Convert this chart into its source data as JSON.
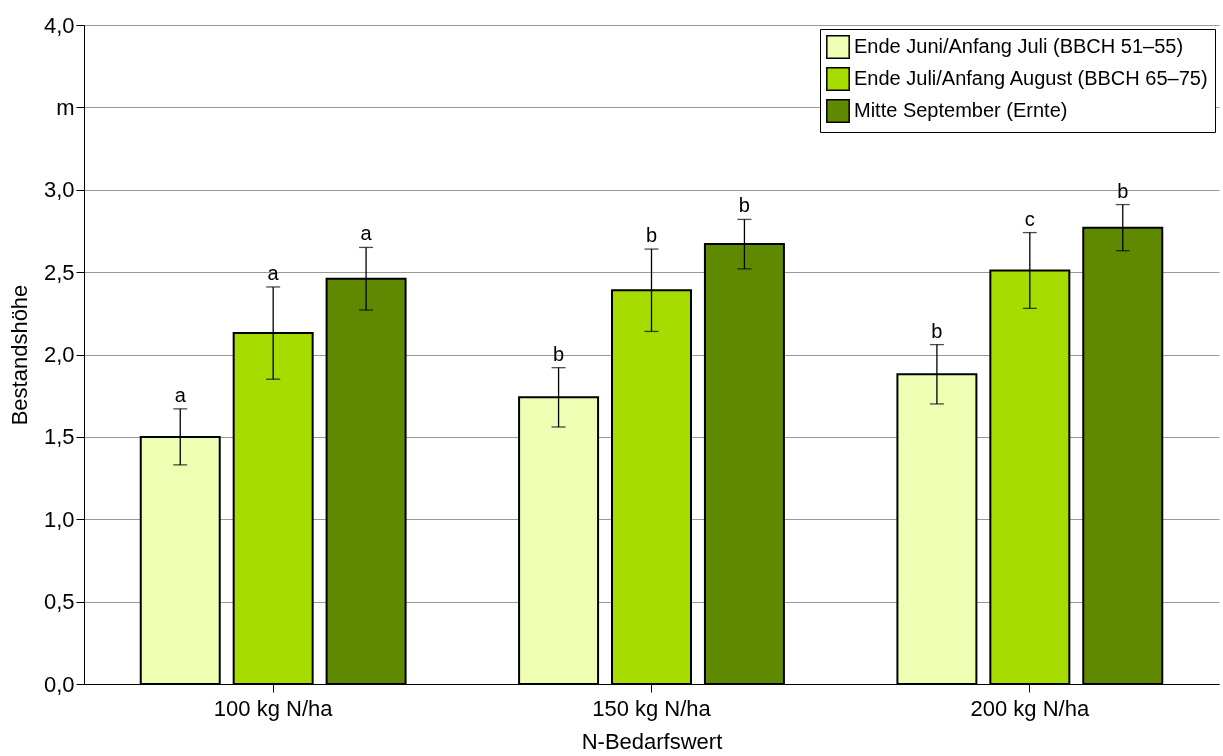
{
  "chart_data": {
    "type": "bar",
    "xlabel": "N-Bedarfswert",
    "ylabel": "Bestandshöhe",
    "categories": [
      "100 kg N/ha",
      "150 kg N/ha",
      "200 kg N/ha"
    ],
    "series": [
      {
        "name": "Ende Juni/Anfang Juli (BBCH 51–55)",
        "color": "#eeffb4",
        "values": [
          1.5,
          1.74,
          1.88
        ],
        "errors": [
          0.17,
          0.18,
          0.18
        ]
      },
      {
        "name": "Ende Juli/Anfang August (BBCH 65–75)",
        "color": "#a6dc00",
        "values": [
          2.13,
          2.39,
          2.51
        ],
        "errors": [
          0.28,
          0.25,
          0.23
        ]
      },
      {
        "name": "Mitte September (Ernte)",
        "color": "#5f8a00",
        "values": [
          2.46,
          2.67,
          2.77
        ],
        "errors": [
          0.19,
          0.15,
          0.14
        ]
      }
    ],
    "ylim": [
      0,
      4
    ],
    "yticks": [
      {
        "value": 0,
        "label": "0,0"
      },
      {
        "value": 0.5,
        "label": "0,5"
      },
      {
        "value": 1,
        "label": "1,0"
      },
      {
        "value": 1.5,
        "label": "1,5"
      },
      {
        "value": 2,
        "label": "2,0"
      },
      {
        "value": 2.5,
        "label": "2,5"
      },
      {
        "value": 3,
        "label": "3,0"
      },
      {
        "value": 3.5,
        "label": "m"
      },
      {
        "value": 4,
        "label": "4,0"
      }
    ],
    "grid": "y",
    "legend": "top right",
    "annotations": [
      "a",
      "a",
      "a",
      "b",
      "b",
      "b",
      "b",
      "c",
      "b"
    ]
  }
}
